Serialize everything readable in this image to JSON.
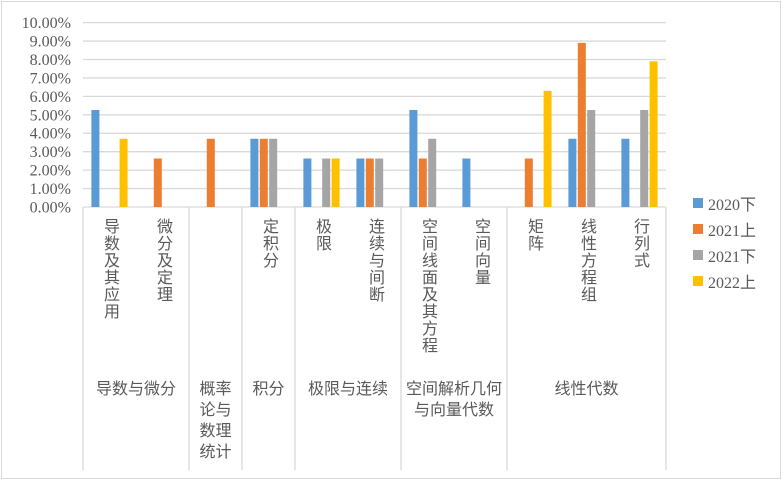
{
  "chart_data": {
    "type": "bar",
    "ylim": [
      0,
      10
    ],
    "yticks": [
      "0.00%",
      "1.00%",
      "2.00%",
      "3.00%",
      "4.00%",
      "5.00%",
      "6.00%",
      "7.00%",
      "8.00%",
      "9.00%",
      "10.00%"
    ],
    "grid": true,
    "legend_position": "right",
    "groups": [
      {
        "label": "导数与微分",
        "categories": [
          "导数及其应用",
          "微分及定理"
        ]
      },
      {
        "label": "概率论与数理统计",
        "categories": [
          ""
        ]
      },
      {
        "label": "积分",
        "categories": [
          "定积分"
        ]
      },
      {
        "label": "极限与连续",
        "categories": [
          "极限",
          "连续与间断"
        ]
      },
      {
        "label": "空间解析几何与向量代数",
        "categories": [
          "空间线面及其方程",
          "空间向量"
        ]
      },
      {
        "label": "线性代数",
        "categories": [
          "矩阵",
          "线性方程组",
          "行列式"
        ]
      }
    ],
    "categories": [
      "导数及其应用",
      "微分及定理",
      "",
      "定积分",
      "极限",
      "连续与间断",
      "空间线面及其方程",
      "空间向量",
      "矩阵",
      "线性方程组",
      "行列式"
    ],
    "series": [
      {
        "name": "2020下",
        "color": "#5b9bd5",
        "values": [
          5.26,
          null,
          null,
          3.7,
          2.63,
          2.63,
          5.26,
          2.63,
          null,
          3.7,
          3.7
        ]
      },
      {
        "name": "2021上",
        "color": "#ed7d31",
        "values": [
          null,
          2.63,
          3.7,
          3.7,
          null,
          2.63,
          2.63,
          null,
          2.63,
          8.9,
          null
        ]
      },
      {
        "name": "2021下",
        "color": "#a5a5a5",
        "values": [
          null,
          null,
          null,
          3.7,
          2.63,
          2.63,
          3.7,
          null,
          null,
          5.26,
          5.26
        ]
      },
      {
        "name": "2022上",
        "color": "#ffc000",
        "values": [
          3.7,
          null,
          null,
          null,
          2.63,
          null,
          null,
          null,
          6.3,
          null,
          7.9
        ]
      }
    ]
  }
}
